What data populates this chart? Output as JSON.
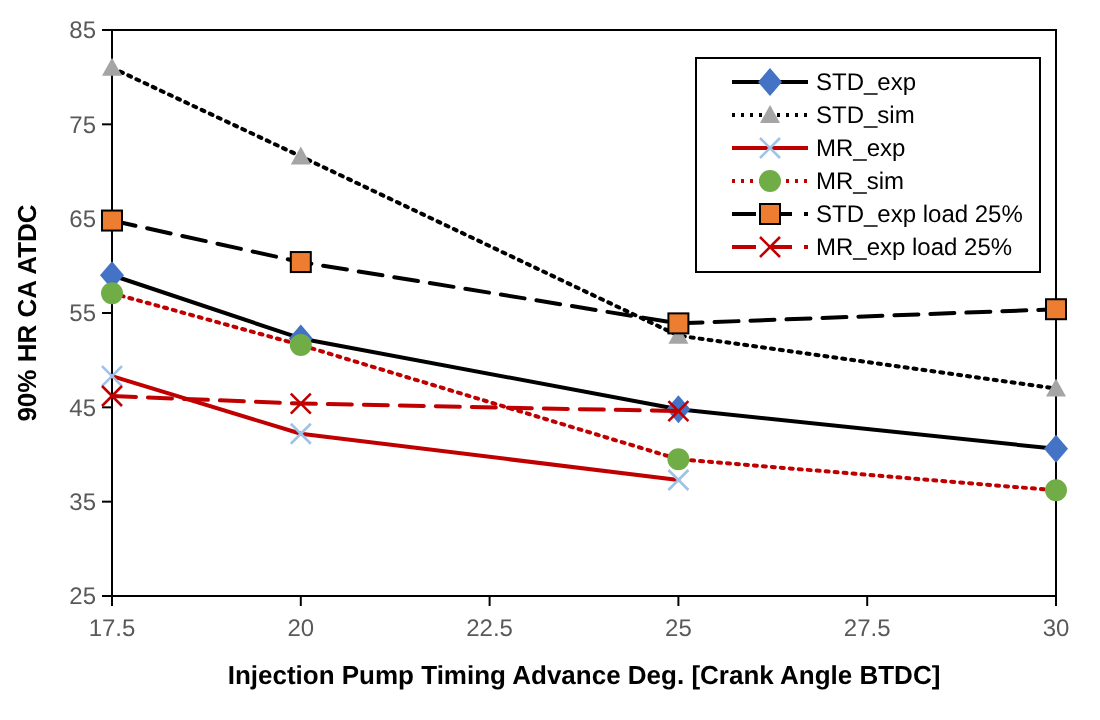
{
  "chart_data": {
    "type": "line",
    "xlabel": "Injection Pump Timing Advance Deg. [Crank Angle BTDC]",
    "ylabel": "90% HR CA ATDC",
    "x": [
      17.5,
      20,
      25,
      30
    ],
    "xlim": [
      17.5,
      30
    ],
    "xticks": [
      17.5,
      20,
      22.5,
      25,
      27.5,
      30
    ],
    "ylim": [
      25,
      85
    ],
    "yticks": [
      25,
      35,
      45,
      55,
      65,
      75,
      85
    ],
    "grid": false,
    "legend": "top right",
    "series": [
      {
        "name": "STD_exp",
        "color": "#000000",
        "colors": [
          "#4472c4",
          "#4472c4",
          "#4472c4",
          "#4472c4"
        ],
        "marker": "diamond",
        "line_style": "solid",
        "values": [
          59,
          52.3,
          44.8,
          40.6
        ]
      },
      {
        "name": "STD_sim",
        "color": "#000000",
        "colors": [
          "#a5a5a5",
          "#a5a5a5",
          "#a5a5a5",
          "#a5a5a5"
        ],
        "marker": "triangle",
        "line_style": "dotted",
        "values": [
          81,
          71.6,
          52.6,
          47
        ]
      },
      {
        "name": "MR_exp",
        "color": "#c00000",
        "colors": [
          "#9dc3e6",
          "#9dc3e6",
          "#9dc3e6",
          null
        ],
        "marker": "cross",
        "line_style": "solid",
        "values": [
          48.3,
          42.2,
          37.3,
          null
        ]
      },
      {
        "name": "MR_sim",
        "color": "#c00000",
        "colors": [
          "#70ad47",
          "#70ad47",
          "#70ad47",
          "#70ad47"
        ],
        "marker": "circle",
        "line_style": "dotted",
        "values": [
          57.1,
          51.6,
          39.5,
          36.2
        ]
      },
      {
        "name": "STD_exp load 25%",
        "color": "#000000",
        "colors": [
          "#ed7d31",
          "#ed7d31",
          "#ed7d31",
          "#ed7d31"
        ],
        "marker": "square",
        "line_style": "dashed",
        "values": [
          64.8,
          60.4,
          53.9,
          55.4
        ]
      },
      {
        "name": "MR_exp load 25%",
        "color": "#c00000",
        "colors": [
          "#c00000",
          "#c00000",
          "#c00000",
          null
        ],
        "marker": "cross",
        "line_style": "dashed",
        "values": [
          46.2,
          45.4,
          44.6,
          null
        ]
      }
    ]
  }
}
